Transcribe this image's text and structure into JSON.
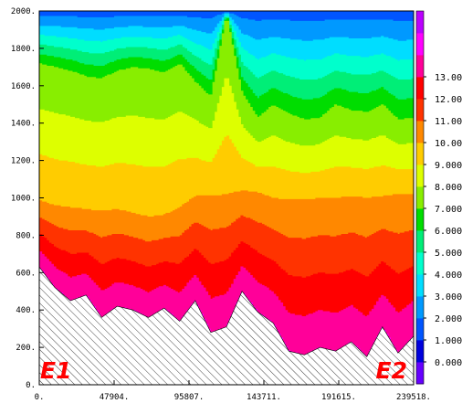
{
  "chart_data": {
    "type": "heatmap",
    "title": "",
    "xlabel": "",
    "ylabel": "",
    "xlim": [
      0,
      239518
    ],
    "ylim": [
      0,
      2000
    ],
    "x_ticks": [
      "0.",
      "47904.",
      "95807.",
      "143711.",
      "191615.",
      "239518."
    ],
    "y_ticks": [
      "0.",
      "200.",
      "400.",
      "600.",
      "800.",
      "1000.",
      "1200.",
      "1400.",
      "1600.",
      "1800.",
      "2000."
    ],
    "colorbar": {
      "ticks": [
        "0.000",
        "1.000",
        "2.000",
        "3.000",
        "4.000",
        "5.000",
        "6.000",
        "7.000",
        "8.000",
        "9.000",
        "10.00",
        "11.00",
        "12.00",
        "13.00"
      ],
      "levels": [
        -1,
        0,
        1,
        2,
        3,
        4,
        5,
        6,
        7,
        8,
        9,
        10,
        11,
        12,
        13,
        14
      ],
      "colors": [
        "#6600ff",
        "#0000dd",
        "#0055ff",
        "#0099ff",
        "#00ddff",
        "#00ffcc",
        "#00ee77",
        "#00dd00",
        "#88ee00",
        "#ddff00",
        "#ffcc00",
        "#ff8800",
        "#ff3300",
        "#ff0000",
        "#ff0099",
        "#ff00ff",
        "#bb00ff"
      ]
    },
    "endpoints": {
      "left": "E1",
      "right": "E2"
    },
    "x": [
      0,
      9980,
      19960,
      29940,
      39920,
      49900,
      59880,
      69860,
      79840,
      89820,
      99800,
      109780,
      119760,
      129740,
      139720,
      149700,
      159680,
      169660,
      179640,
      189620,
      199600,
      209580,
      219560,
      229540,
      239518
    ],
    "bathymetry_depth": [
      630,
      520,
      450,
      480,
      360,
      420,
      400,
      360,
      410,
      340,
      450,
      280,
      310,
      500,
      390,
      330,
      180,
      160,
      200,
      180,
      230,
      150,
      310,
      170,
      260
    ],
    "contour_depths": {
      "6.000": [
        1720,
        1700,
        1680,
        1650,
        1640,
        1680,
        1700,
        1690,
        1670,
        1720,
        1620,
        1540,
        1980,
        1560,
        1430,
        1500,
        1450,
        1420,
        1430,
        1500,
        1470,
        1460,
        1500,
        1420,
        1430
      ],
      "9.000": [
        990,
        960,
        950,
        940,
        930,
        940,
        920,
        900,
        910,
        950,
        1010,
        1010,
        1020,
        1040,
        1030,
        1000,
        990,
        990,
        1000,
        1000,
        1010,
        1000,
        1010,
        1020,
        1020
      ]
    },
    "surface_value": 13.0,
    "bottom_value": 0.5
  }
}
